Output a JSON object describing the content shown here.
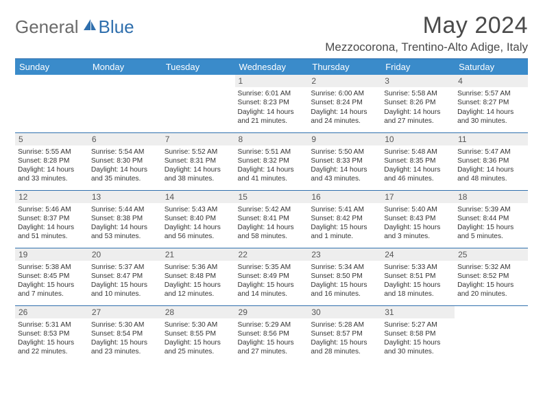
{
  "logo": {
    "part1": "General",
    "part2": "Blue"
  },
  "title": "May 2024",
  "location": "Mezzocorona, Trentino-Alto Adige, Italy",
  "colors": {
    "header_bg": "#3a8bca",
    "header_text": "#ffffff",
    "divider": "#2f6fad",
    "daynum_bg": "#eeeeee",
    "body_text": "#333333",
    "logo_gray": "#6a6a6a",
    "logo_blue": "#2f6fad"
  },
  "weekdays": [
    "Sunday",
    "Monday",
    "Tuesday",
    "Wednesday",
    "Thursday",
    "Friday",
    "Saturday"
  ],
  "weeks": [
    [
      {
        "n": "",
        "sr": "",
        "ss": "",
        "dl": ""
      },
      {
        "n": "",
        "sr": "",
        "ss": "",
        "dl": ""
      },
      {
        "n": "",
        "sr": "",
        "ss": "",
        "dl": ""
      },
      {
        "n": "1",
        "sr": "Sunrise: 6:01 AM",
        "ss": "Sunset: 8:23 PM",
        "dl": "Daylight: 14 hours and 21 minutes."
      },
      {
        "n": "2",
        "sr": "Sunrise: 6:00 AM",
        "ss": "Sunset: 8:24 PM",
        "dl": "Daylight: 14 hours and 24 minutes."
      },
      {
        "n": "3",
        "sr": "Sunrise: 5:58 AM",
        "ss": "Sunset: 8:26 PM",
        "dl": "Daylight: 14 hours and 27 minutes."
      },
      {
        "n": "4",
        "sr": "Sunrise: 5:57 AM",
        "ss": "Sunset: 8:27 PM",
        "dl": "Daylight: 14 hours and 30 minutes."
      }
    ],
    [
      {
        "n": "5",
        "sr": "Sunrise: 5:55 AM",
        "ss": "Sunset: 8:28 PM",
        "dl": "Daylight: 14 hours and 33 minutes."
      },
      {
        "n": "6",
        "sr": "Sunrise: 5:54 AM",
        "ss": "Sunset: 8:30 PM",
        "dl": "Daylight: 14 hours and 35 minutes."
      },
      {
        "n": "7",
        "sr": "Sunrise: 5:52 AM",
        "ss": "Sunset: 8:31 PM",
        "dl": "Daylight: 14 hours and 38 minutes."
      },
      {
        "n": "8",
        "sr": "Sunrise: 5:51 AM",
        "ss": "Sunset: 8:32 PM",
        "dl": "Daylight: 14 hours and 41 minutes."
      },
      {
        "n": "9",
        "sr": "Sunrise: 5:50 AM",
        "ss": "Sunset: 8:33 PM",
        "dl": "Daylight: 14 hours and 43 minutes."
      },
      {
        "n": "10",
        "sr": "Sunrise: 5:48 AM",
        "ss": "Sunset: 8:35 PM",
        "dl": "Daylight: 14 hours and 46 minutes."
      },
      {
        "n": "11",
        "sr": "Sunrise: 5:47 AM",
        "ss": "Sunset: 8:36 PM",
        "dl": "Daylight: 14 hours and 48 minutes."
      }
    ],
    [
      {
        "n": "12",
        "sr": "Sunrise: 5:46 AM",
        "ss": "Sunset: 8:37 PM",
        "dl": "Daylight: 14 hours and 51 minutes."
      },
      {
        "n": "13",
        "sr": "Sunrise: 5:44 AM",
        "ss": "Sunset: 8:38 PM",
        "dl": "Daylight: 14 hours and 53 minutes."
      },
      {
        "n": "14",
        "sr": "Sunrise: 5:43 AM",
        "ss": "Sunset: 8:40 PM",
        "dl": "Daylight: 14 hours and 56 minutes."
      },
      {
        "n": "15",
        "sr": "Sunrise: 5:42 AM",
        "ss": "Sunset: 8:41 PM",
        "dl": "Daylight: 14 hours and 58 minutes."
      },
      {
        "n": "16",
        "sr": "Sunrise: 5:41 AM",
        "ss": "Sunset: 8:42 PM",
        "dl": "Daylight: 15 hours and 1 minute."
      },
      {
        "n": "17",
        "sr": "Sunrise: 5:40 AM",
        "ss": "Sunset: 8:43 PM",
        "dl": "Daylight: 15 hours and 3 minutes."
      },
      {
        "n": "18",
        "sr": "Sunrise: 5:39 AM",
        "ss": "Sunset: 8:44 PM",
        "dl": "Daylight: 15 hours and 5 minutes."
      }
    ],
    [
      {
        "n": "19",
        "sr": "Sunrise: 5:38 AM",
        "ss": "Sunset: 8:45 PM",
        "dl": "Daylight: 15 hours and 7 minutes."
      },
      {
        "n": "20",
        "sr": "Sunrise: 5:37 AM",
        "ss": "Sunset: 8:47 PM",
        "dl": "Daylight: 15 hours and 10 minutes."
      },
      {
        "n": "21",
        "sr": "Sunrise: 5:36 AM",
        "ss": "Sunset: 8:48 PM",
        "dl": "Daylight: 15 hours and 12 minutes."
      },
      {
        "n": "22",
        "sr": "Sunrise: 5:35 AM",
        "ss": "Sunset: 8:49 PM",
        "dl": "Daylight: 15 hours and 14 minutes."
      },
      {
        "n": "23",
        "sr": "Sunrise: 5:34 AM",
        "ss": "Sunset: 8:50 PM",
        "dl": "Daylight: 15 hours and 16 minutes."
      },
      {
        "n": "24",
        "sr": "Sunrise: 5:33 AM",
        "ss": "Sunset: 8:51 PM",
        "dl": "Daylight: 15 hours and 18 minutes."
      },
      {
        "n": "25",
        "sr": "Sunrise: 5:32 AM",
        "ss": "Sunset: 8:52 PM",
        "dl": "Daylight: 15 hours and 20 minutes."
      }
    ],
    [
      {
        "n": "26",
        "sr": "Sunrise: 5:31 AM",
        "ss": "Sunset: 8:53 PM",
        "dl": "Daylight: 15 hours and 22 minutes."
      },
      {
        "n": "27",
        "sr": "Sunrise: 5:30 AM",
        "ss": "Sunset: 8:54 PM",
        "dl": "Daylight: 15 hours and 23 minutes."
      },
      {
        "n": "28",
        "sr": "Sunrise: 5:30 AM",
        "ss": "Sunset: 8:55 PM",
        "dl": "Daylight: 15 hours and 25 minutes."
      },
      {
        "n": "29",
        "sr": "Sunrise: 5:29 AM",
        "ss": "Sunset: 8:56 PM",
        "dl": "Daylight: 15 hours and 27 minutes."
      },
      {
        "n": "30",
        "sr": "Sunrise: 5:28 AM",
        "ss": "Sunset: 8:57 PM",
        "dl": "Daylight: 15 hours and 28 minutes."
      },
      {
        "n": "31",
        "sr": "Sunrise: 5:27 AM",
        "ss": "Sunset: 8:58 PM",
        "dl": "Daylight: 15 hours and 30 minutes."
      },
      {
        "n": "",
        "sr": "",
        "ss": "",
        "dl": ""
      }
    ]
  ]
}
